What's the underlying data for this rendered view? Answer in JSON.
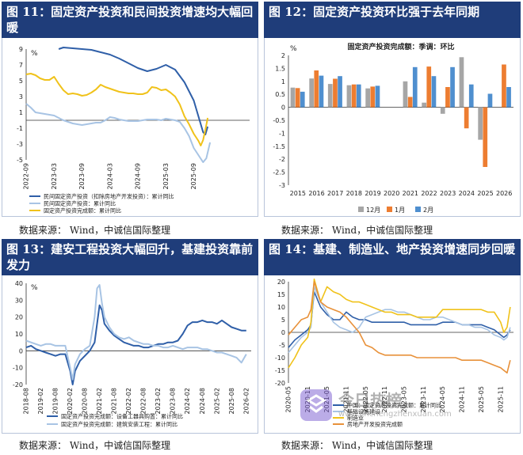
{
  "panels": [
    {
      "title": "图 11：固定资产投资和民间投资增速均大幅回暖",
      "source": "数据来源：  Wind，中诚信国际整理",
      "chart_data": {
        "type": "line",
        "unit": "%",
        "ylim": [
          -5,
          9
        ],
        "yticks": [
          -5,
          -3,
          -1,
          1,
          3,
          5,
          7,
          9
        ],
        "xlim": [
          0,
          48
        ],
        "xtick_labels": [
          "2022-09",
          "2023-03",
          "2023-09",
          "2024-03",
          "2024-09",
          "2025-03",
          "2025-09"
        ],
        "xtick_pos": [
          0,
          6,
          12,
          18,
          24,
          30,
          36
        ],
        "legend": [
          "民间固定资产投资（扣除房地产开发投资）：累计同比",
          "民间固定资产投资：累计同比",
          "固定资产投资完成额：累计同比"
        ],
        "series": [
          {
            "name": "民间固定资产投资（扣除房地产开发投资）：累计同比",
            "color": "#2f5fa8",
            "x": [
              7,
              8,
              10,
              12,
              14,
              16,
              18,
              20,
              22,
              24,
              26,
              28,
              30,
              32,
              34,
              36,
              37,
              38,
              38.5,
              39
            ],
            "y": [
              9.0,
              9.2,
              9.1,
              9.0,
              8.9,
              8.6,
              8.3,
              7.8,
              7.2,
              6.6,
              6.2,
              6.5,
              7.0,
              6.4,
              4.8,
              2.5,
              0.5,
              -1.5,
              -1.8,
              -0.8
            ]
          },
          {
            "name": "民间固定资产投资：累计同比",
            "color": "#a8c4e4",
            "x": [
              0,
              1,
              2,
              3,
              4,
              5,
              6,
              7,
              8,
              9,
              10,
              11,
              12,
              13,
              14,
              15,
              16,
              17,
              18,
              19,
              20,
              21,
              22,
              23,
              24,
              25,
              26,
              27,
              28,
              29,
              30,
              31,
              32,
              33,
              34,
              35,
              36,
              37,
              38,
              38.7,
              39.5
            ],
            "y": [
              2.1,
              1.6,
              1.0,
              0.9,
              0.8,
              0.7,
              0.6,
              0.3,
              0.0,
              -0.2,
              -0.4,
              -0.5,
              -0.6,
              -0.5,
              -0.4,
              -0.3,
              -0.3,
              0.0,
              0.4,
              0.3,
              0.1,
              0.0,
              -0.1,
              -0.1,
              -0.1,
              0.0,
              0.1,
              0.1,
              0.1,
              0.0,
              0.2,
              0.1,
              0.0,
              -0.2,
              -1.0,
              -2.0,
              -3.5,
              -4.4,
              -5.3,
              -4.8,
              -2.8
            ]
          },
          {
            "name": "固定资产投资完成额：累计同比",
            "color": "#f0c21a",
            "x": [
              0,
              1,
              2,
              3,
              4,
              5,
              6,
              7,
              8,
              9,
              10,
              11,
              12,
              13,
              14,
              15,
              16,
              17,
              18,
              19,
              20,
              21,
              22,
              23,
              24,
              25,
              26,
              27,
              28,
              29,
              30,
              31,
              32,
              33,
              34,
              35,
              36,
              37,
              37.5,
              38,
              38.5,
              39
            ],
            "y": [
              5.8,
              5.9,
              5.7,
              5.3,
              5.1,
              5.1,
              5.5,
              4.6,
              3.8,
              3.3,
              3.4,
              3.3,
              3.1,
              3.2,
              3.5,
              3.9,
              4.5,
              4.2,
              4.0,
              3.8,
              3.6,
              3.5,
              3.4,
              3.4,
              3.3,
              3.3,
              3.5,
              4.2,
              4.1,
              3.8,
              3.9,
              3.5,
              3.0,
              2.0,
              0.5,
              -0.5,
              -1.7,
              -2.6,
              -3.2,
              -2.5,
              -1.2,
              0.3
            ]
          }
        ]
      }
    },
    {
      "title": "图 12：固定资产投资环比强于去年同期",
      "source": "数据来源：  Wind，中诚信国际整理",
      "chart_data": {
        "type": "bar",
        "title": "固定资产投资完成额：季调：环比",
        "unit": "%",
        "ylim": [
          -3,
          2
        ],
        "yticks": [
          -3,
          -2.5,
          -2,
          -1.5,
          -1,
          -0.5,
          0,
          0.5,
          1,
          1.5,
          2
        ],
        "categories": [
          "2015",
          "2016",
          "2017",
          "2018",
          "2019",
          "2020",
          "2021",
          "2022",
          "2023",
          "2024",
          "2025",
          "2026"
        ],
        "series": [
          {
            "name": "12月",
            "color": "#a6a6a6",
            "values": [
              0.76,
              1.11,
              0.9,
              0.85,
              0.73,
              null,
              1.0,
              0.18,
              -0.25,
              1.93,
              -1.25,
              null
            ]
          },
          {
            "name": "1月",
            "color": "#ed7d31",
            "values": [
              0.74,
              1.42,
              1.1,
              0.88,
              0.8,
              null,
              0.4,
              1.57,
              0.78,
              -0.81,
              -2.3,
              1.65
            ]
          },
          {
            "name": "2月",
            "color": "#4f8fcf",
            "values": [
              0.6,
              1.22,
              1.2,
              0.88,
              0.83,
              null,
              1.55,
              1.2,
              1.55,
              0.88,
              0.52,
              0.78
            ]
          }
        ]
      }
    },
    {
      "title": "图 13：建安工程投资大幅回升，基建投资靠前发力",
      "source": "数据来源：  Wind，中诚信国际整理",
      "chart_data": {
        "type": "line",
        "unit": "%",
        "ylim": [
          -20,
          40
        ],
        "yticks": [
          -20,
          -10,
          0,
          10,
          20,
          30,
          40
        ],
        "xlim": [
          0,
          92
        ],
        "xtick_labels": [
          "2018-08",
          "2019-02",
          "2019-08",
          "2020-02",
          "2020-08",
          "2021-02",
          "2021-08",
          "2022-02",
          "2022-08",
          "2023-02",
          "2023-08",
          "2024-02",
          "2024-08",
          "2025-02",
          "2025-08",
          "2026-02"
        ],
        "xtick_pos": [
          0,
          6,
          12,
          18,
          24,
          30,
          36,
          42,
          48,
          54,
          60,
          66,
          72,
          78,
          84,
          90
        ],
        "legend": [
          "固定资产投资完成额：设备工器具购置：累计同比",
          "固定资产投资完成额：建筑安装工程：累计同比"
        ],
        "series": [
          {
            "name": "固定资产投资完成额：设备工器具购置：累计同比",
            "color": "#2f5fa8",
            "x": [
              0,
              2,
              4,
              6,
              8,
              10,
              12,
              14,
              16,
              18,
              19,
              20,
              22,
              24,
              26,
              28,
              29,
              30,
              31,
              32,
              34,
              36,
              38,
              40,
              42,
              44,
              46,
              48,
              50,
              52,
              54,
              56,
              58,
              60,
              62,
              64,
              66,
              68,
              70,
              72,
              74,
              76,
              78,
              80,
              82,
              84,
              86,
              88,
              90
            ],
            "y": [
              2,
              3,
              1,
              0,
              -1,
              -2,
              -3,
              -2,
              -2,
              -12,
              -20,
              -12,
              -6,
              -3,
              0,
              5,
              16,
              27,
              24,
              16,
              12,
              9,
              7,
              5,
              4,
              3,
              3,
              2,
              2,
              3,
              4,
              4,
              5,
              5,
              6,
              10,
              15,
              17,
              17,
              18,
              17,
              17,
              16,
              18,
              16,
              14,
              13,
              12,
              12
            ]
          },
          {
            "name": "固定资产投资完成额：建筑安装工程：累计同比",
            "color": "#a8c4e4",
            "x": [
              0,
              2,
              4,
              6,
              8,
              10,
              12,
              14,
              16,
              18,
              19,
              20,
              22,
              24,
              26,
              28,
              29,
              30,
              31,
              32,
              34,
              36,
              38,
              40,
              42,
              44,
              46,
              48,
              50,
              52,
              54,
              56,
              58,
              60,
              62,
              64,
              66,
              68,
              70,
              72,
              74,
              76,
              78,
              80,
              82,
              84,
              86,
              88,
              90
            ],
            "y": [
              6,
              5,
              4,
              3,
              4,
              4,
              3,
              3,
              3,
              -10,
              -17,
              -8,
              -2,
              1,
              3,
              20,
              37,
              39,
              28,
              20,
              14,
              10,
              8,
              7,
              8,
              6,
              5,
              4,
              4,
              3,
              3,
              2,
              2,
              3,
              2,
              1,
              2,
              2,
              2,
              1,
              1,
              0,
              -1,
              -1,
              -2,
              -3,
              -4,
              -7,
              -2
            ]
          }
        ]
      }
    },
    {
      "title": "图 14：基建、制造业、地产投资增速同步回暖",
      "source": "数据来源：  Wind，中诚信国际整理",
      "chart_data": {
        "type": "line",
        "ylim": [
          -20,
          20
        ],
        "yticks": [
          -20,
          -15,
          -10,
          -5,
          0,
          5,
          10,
          15,
          20
        ],
        "xlim": [
          0,
          70
        ],
        "xtick_labels": [
          "2020-05",
          "2020-11",
          "2021-05",
          "2021-11",
          "2022-05",
          "2022-11",
          "2023-05",
          "2023-11",
          "2024-05",
          "2024-11",
          "2025-05",
          "2025-11"
        ],
        "xtick_pos": [
          0,
          6,
          12,
          18,
          24,
          30,
          36,
          42,
          48,
          54,
          60,
          66
        ],
        "legend": [
          "中国：固定资产投资完成额：累计同比",
          "基础设施建设",
          "制造业",
          "房地产开发投资完成额"
        ],
        "series": [
          {
            "name": "中国：固定资产投资完成额：累计同比",
            "color": "#2f5fa8",
            "x": [
              0,
              2,
              4,
              6,
              7,
              8,
              10,
              12,
              14,
              16,
              18,
              20,
              22,
              24,
              26,
              28,
              30,
              32,
              34,
              36,
              38,
              40,
              42,
              44,
              46,
              48,
              50,
              52,
              54,
              56,
              58,
              60,
              62,
              64,
              66,
              67,
              68,
              69
            ],
            "y": [
              -6,
              -3,
              -1,
              1,
              3,
              16,
              10,
              7,
              5,
              5,
              8,
              6,
              5,
              5,
              4,
              4,
              4,
              4,
              4,
              4,
              3,
              3,
              3,
              3,
              3,
              4,
              4,
              4,
              3,
              3,
              3,
              3,
              2,
              1,
              -1,
              -2,
              -1,
              1
            ]
          },
          {
            "name": "基础设施建设",
            "color": "#a8c4e4",
            "x": [
              0,
              2,
              4,
              6,
              7,
              8,
              10,
              12,
              14,
              16,
              18,
              20,
              22,
              24,
              26,
              28,
              30,
              32,
              34,
              36,
              38,
              40,
              42,
              44,
              46,
              48,
              50,
              52,
              54,
              56,
              58,
              60,
              62,
              64,
              66,
              67,
              68,
              69
            ],
            "y": [
              -8,
              -5,
              -2,
              0,
              2,
              18,
              12,
              8,
              4,
              2,
              1,
              0,
              2,
              6,
              7,
              8,
              9,
              9,
              8,
              8,
              7,
              6,
              5,
              5,
              6,
              6,
              5,
              4,
              3,
              3,
              2,
              2,
              1,
              -1,
              -2,
              -3,
              -2,
              2
            ]
          },
          {
            "name": "制造业",
            "color": "#f0c21a",
            "x": [
              0,
              2,
              4,
              6,
              7,
              8,
              10,
              12,
              14,
              16,
              18,
              20,
              22,
              24,
              26,
              28,
              30,
              32,
              34,
              36,
              38,
              40,
              42,
              44,
              46,
              48,
              50,
              52,
              54,
              56,
              58,
              60,
              62,
              64,
              66,
              67,
              68,
              69
            ],
            "y": [
              -14,
              -10,
              -5,
              -2,
              4,
              21,
              12,
              18,
              16,
              15,
              13,
              12,
              12,
              11,
              10,
              9,
              8,
              8,
              7,
              7,
              7,
              6,
              6,
              6,
              6,
              9,
              9,
              9,
              9,
              9,
              9,
              9,
              8,
              8,
              4,
              0,
              2,
              10
            ]
          },
          {
            "name": "房地产开发投资完成额",
            "color": "#e8913a",
            "x": [
              0,
              2,
              4,
              6,
              7,
              8,
              10,
              12,
              14,
              16,
              18,
              20,
              22,
              24,
              26,
              28,
              30,
              32,
              34,
              36,
              38,
              40,
              42,
              44,
              46,
              48,
              50,
              52,
              54,
              56,
              58,
              60,
              62,
              64,
              66,
              67,
              68,
              69
            ],
            "y": [
              -1,
              2,
              5,
              6,
              9,
              20,
              12,
              10,
              9,
              8,
              6,
              3,
              0,
              -5,
              -6,
              -8,
              -9,
              -9,
              -9,
              -9,
              -9,
              -10,
              -10,
              -10,
              -10,
              -10,
              -10,
              -10,
              -11,
              -11,
              -11,
              -11,
              -12,
              -13,
              -14,
              -15,
              -16,
              -11
            ]
          }
        ]
      }
    }
  ],
  "watermark": {
    "text": "今日热榜",
    "url": "www.jinchengzhenxuan.com"
  }
}
